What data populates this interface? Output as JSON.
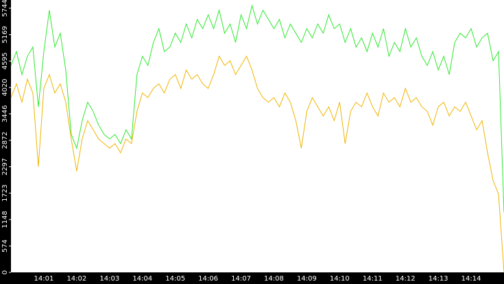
{
  "chart_data": {
    "type": "line",
    "categories": [
      null,
      null,
      null,
      null,
      null,
      null,
      "14:01",
      null,
      null,
      null,
      null,
      null,
      "14:02",
      null,
      null,
      null,
      null,
      null,
      "14:03",
      null,
      null,
      null,
      null,
      null,
      "14:04",
      null,
      null,
      null,
      null,
      null,
      "14:05",
      null,
      null,
      null,
      null,
      null,
      "14:06",
      null,
      null,
      null,
      null,
      null,
      "14:07",
      null,
      null,
      null,
      null,
      null,
      "14:08",
      null,
      null,
      null,
      null,
      null,
      "14:09",
      null,
      null,
      null,
      null,
      null,
      "14:10",
      null,
      null,
      null,
      null,
      null,
      "14:11",
      null,
      null,
      null,
      null,
      null,
      "14:12",
      null,
      null,
      null,
      null,
      null,
      "14:13",
      null,
      null,
      null,
      null,
      null,
      "14:14",
      null,
      null,
      null,
      null,
      null,
      null
    ],
    "series": [
      {
        "color": "#2ee82e",
        "values": [
          4500,
          4800,
          4300,
          4700,
          4900,
          3600,
          4800,
          5700,
          4900,
          5200,
          4400,
          3000,
          2700,
          3300,
          3700,
          3500,
          3200,
          3000,
          2900,
          3000,
          2800,
          3100,
          2900,
          4300,
          4700,
          4500,
          5000,
          5300,
          4800,
          4900,
          5200,
          5000,
          5400,
          5100,
          5500,
          5300,
          5600,
          5300,
          5700,
          5200,
          5400,
          5000,
          5600,
          5300,
          5800,
          5400,
          5700,
          5500,
          5300,
          5500,
          5100,
          5400,
          5200,
          5000,
          5300,
          5100,
          5400,
          5200,
          5600,
          5300,
          5400,
          5000,
          5300,
          4900,
          5100,
          4800,
          5200,
          4900,
          5300,
          4700,
          5000,
          4800,
          5300,
          4900,
          5100,
          4700,
          4500,
          4800,
          4400,
          4700,
          4300,
          5000,
          5200,
          5100,
          5300,
          4900,
          5100,
          5200,
          4600,
          4800,
          1300
        ]
      },
      {
        "color": "#f0b400",
        "values": [
          3800,
          4100,
          3700,
          4200,
          3900,
          2300,
          4000,
          4300,
          3900,
          4100,
          3700,
          2900,
          2200,
          2900,
          3300,
          3100,
          2900,
          2800,
          2700,
          2800,
          2600,
          2900,
          2800,
          3500,
          3900,
          3800,
          4000,
          4100,
          3900,
          4200,
          4300,
          4000,
          4400,
          4200,
          4300,
          4100,
          4000,
          4300,
          4700,
          4500,
          4600,
          4300,
          4500,
          4700,
          4400,
          4000,
          3800,
          3700,
          3800,
          3600,
          3900,
          3700,
          3300,
          2700,
          3500,
          3800,
          3600,
          3400,
          3600,
          3300,
          3700,
          2800,
          3500,
          3700,
          3600,
          3900,
          3600,
          3400,
          3900,
          3700,
          3800,
          3600,
          4000,
          3700,
          3800,
          3600,
          3500,
          3200,
          3600,
          3700,
          3400,
          3600,
          3500,
          3700,
          3400,
          3100,
          3300,
          2600,
          2000,
          1700,
          0
        ]
      }
    ],
    "ylim": [
      0,
      5744
    ],
    "yticks": [
      0,
      574,
      1148,
      1723,
      2297,
      2872,
      3446,
      4020,
      4595,
      5169,
      5744
    ]
  }
}
